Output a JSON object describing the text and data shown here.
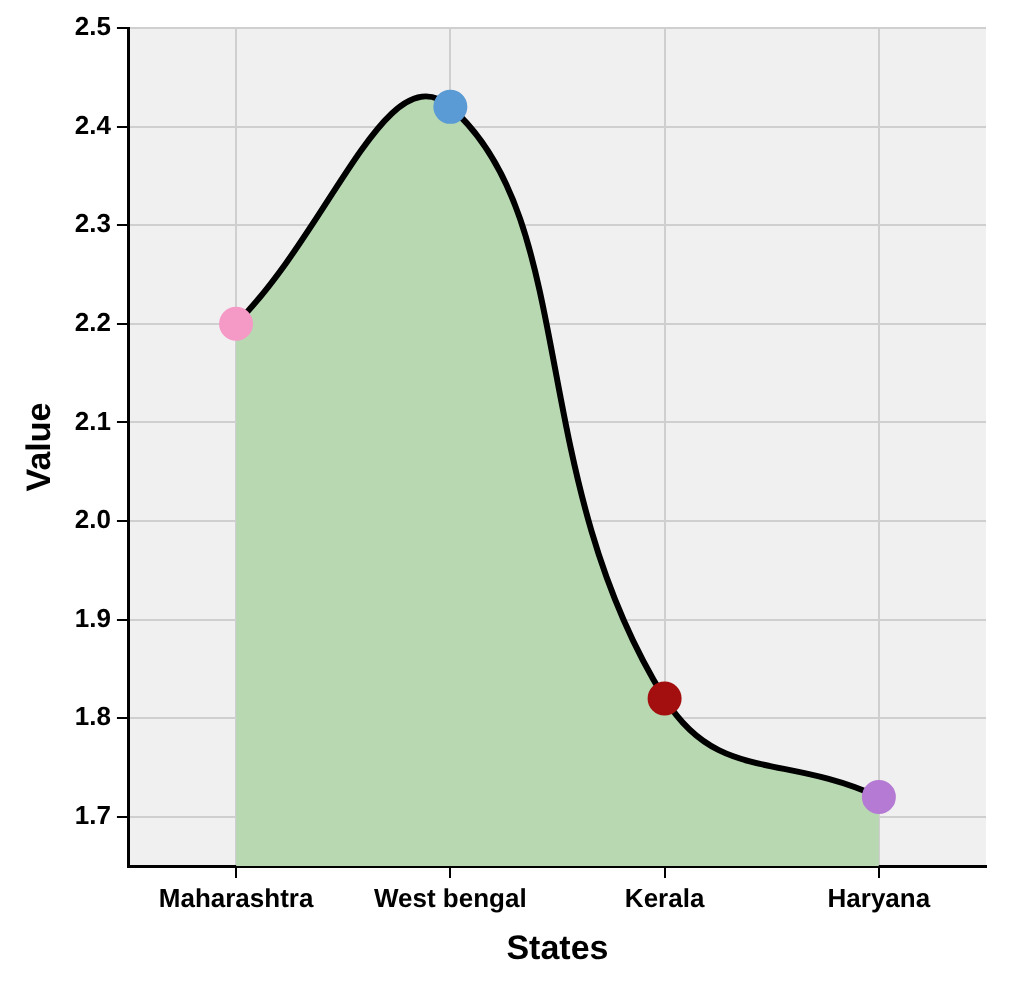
{
  "chart_data": {
    "type": "area",
    "xlabel": "States",
    "ylabel": "Value",
    "categories": [
      "Maharashtra",
      "West bengal",
      "Kerala",
      "Haryana"
    ],
    "series": [
      {
        "color": "#b7d8b1",
        "colors": [
          "#f59ac6",
          "#5b9bd5",
          "#a30f0f",
          "#b57ad3"
        ],
        "values": [
          2.2,
          2.42,
          1.82,
          1.72
        ]
      }
    ],
    "ylim": [
      1.65,
      2.5
    ],
    "yticks": [
      1.7,
      1.8,
      1.9,
      {
        "value": 2,
        "label": "2.0"
      },
      2.1,
      2.2,
      2.3,
      2.4,
      2.5
    ],
    "grid": true,
    "legend": false,
    "marker": "circle",
    "line_style": "solid"
  }
}
